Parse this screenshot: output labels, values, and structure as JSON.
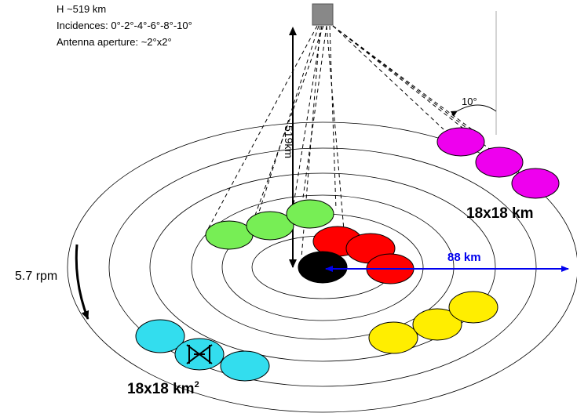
{
  "info": {
    "altitude": "H ~519 km",
    "incidences": "Incidences: 0°-2°-4°-6°-8°-10°",
    "aperture": "Antenna aperture: ~2°x2°"
  },
  "labels": {
    "height": "519km",
    "angle": "10°",
    "footprint_right": "18x18 km",
    "footprint_left": "18x18 km",
    "superscript": "2",
    "radius": "88 km",
    "rotation": "5.7 rpm"
  },
  "colors": {
    "green": "#77ee55",
    "red": "#ff0000",
    "black": "#000000",
    "magenta": "#ee00ee",
    "yellow": "#ffee00",
    "cyan": "#33ddee",
    "blue": "#0000ee",
    "satellite": "#888888"
  }
}
